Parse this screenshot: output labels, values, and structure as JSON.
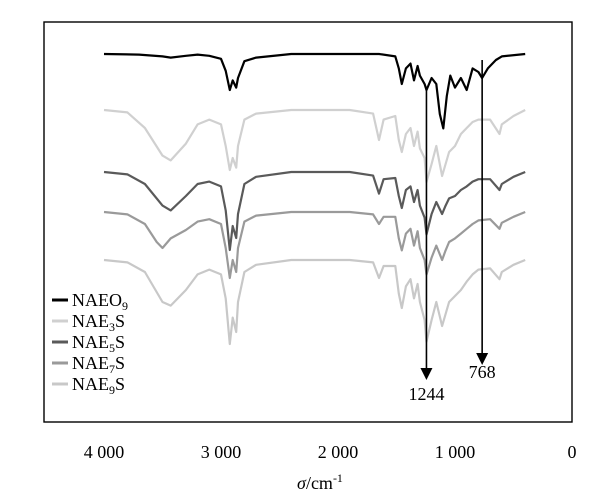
{
  "chart_data": {
    "type": "line",
    "title": "",
    "xlabel": {
      "symbol": "σ",
      "unit": "/cm",
      "exponent": "-1"
    },
    "ylabel": "",
    "xlim": [
      4000,
      0
    ],
    "x_ticks": [
      {
        "value": 4000,
        "label": "4 000"
      },
      {
        "value": 3000,
        "label": "3 000"
      },
      {
        "value": 2000,
        "label": "2 000"
      },
      {
        "value": 1000,
        "label": "1 000"
      },
      {
        "value": 0,
        "label": "0"
      }
    ],
    "legend": [
      {
        "prefix": "NAEO",
        "sub": "9",
        "suffix": "",
        "color": "#000000"
      },
      {
        "prefix": "NAE",
        "sub": "3",
        "suffix": "S",
        "color": "#d0d0d0"
      },
      {
        "prefix": "NAE",
        "sub": "5",
        "suffix": "S",
        "color": "#5a5a5a"
      },
      {
        "prefix": "NAE",
        "sub": "7",
        "suffix": "S",
        "color": "#9a9a9a"
      },
      {
        "prefix": "NAE",
        "sub": "9",
        "suffix": "S",
        "color": "#c8c8c8"
      }
    ],
    "legend_position": "bottom-left",
    "annotations": [
      {
        "label": "1244",
        "x": 1244
      },
      {
        "label": "768",
        "x": 768
      }
    ],
    "series": [
      {
        "color": "#000000",
        "baseline": 0,
        "points": [
          [
            4000,
            0
          ],
          [
            3700,
            0.5
          ],
          [
            3500,
            2
          ],
          [
            3430,
            3
          ],
          [
            3300,
            1.5
          ],
          [
            3200,
            0.5
          ],
          [
            3100,
            1.5
          ],
          [
            3000,
            4
          ],
          [
            2960,
            14
          ],
          [
            2925,
            30
          ],
          [
            2900,
            22
          ],
          [
            2870,
            28
          ],
          [
            2855,
            20
          ],
          [
            2800,
            6
          ],
          [
            2700,
            3
          ],
          [
            2400,
            0
          ],
          [
            1900,
            0
          ],
          [
            1650,
            0
          ],
          [
            1510,
            2
          ],
          [
            1480,
            12
          ],
          [
            1455,
            25
          ],
          [
            1420,
            12
          ],
          [
            1380,
            8
          ],
          [
            1350,
            22
          ],
          [
            1320,
            10
          ],
          [
            1300,
            18
          ],
          [
            1260,
            25
          ],
          [
            1244,
            30
          ],
          [
            1200,
            20
          ],
          [
            1160,
            25
          ],
          [
            1130,
            50
          ],
          [
            1100,
            62
          ],
          [
            1070,
            35
          ],
          [
            1040,
            18
          ],
          [
            1000,
            28
          ],
          [
            950,
            20
          ],
          [
            900,
            30
          ],
          [
            850,
            12
          ],
          [
            800,
            15
          ],
          [
            768,
            20
          ],
          [
            720,
            12
          ],
          [
            650,
            5
          ],
          [
            600,
            2
          ],
          [
            400,
            0
          ]
        ]
      },
      {
        "color": "#d0d0d0",
        "baseline": 0,
        "points": [
          [
            4000,
            0
          ],
          [
            3800,
            2
          ],
          [
            3650,
            15
          ],
          [
            3500,
            38
          ],
          [
            3430,
            42
          ],
          [
            3300,
            28
          ],
          [
            3200,
            12
          ],
          [
            3100,
            8
          ],
          [
            3000,
            12
          ],
          [
            2960,
            30
          ],
          [
            2925,
            50
          ],
          [
            2900,
            40
          ],
          [
            2870,
            48
          ],
          [
            2855,
            30
          ],
          [
            2800,
            8
          ],
          [
            2700,
            3
          ],
          [
            2400,
            0
          ],
          [
            1900,
            0
          ],
          [
            1700,
            3
          ],
          [
            1650,
            25
          ],
          [
            1610,
            8
          ],
          [
            1510,
            5
          ],
          [
            1480,
            25
          ],
          [
            1455,
            35
          ],
          [
            1420,
            20
          ],
          [
            1380,
            15
          ],
          [
            1350,
            30
          ],
          [
            1320,
            18
          ],
          [
            1300,
            32
          ],
          [
            1260,
            40
          ],
          [
            1244,
            60
          ],
          [
            1200,
            45
          ],
          [
            1160,
            30
          ],
          [
            1110,
            55
          ],
          [
            1080,
            45
          ],
          [
            1050,
            35
          ],
          [
            1000,
            30
          ],
          [
            950,
            20
          ],
          [
            900,
            15
          ],
          [
            850,
            10
          ],
          [
            800,
            8
          ],
          [
            700,
            8
          ],
          [
            620,
            20
          ],
          [
            600,
            12
          ],
          [
            500,
            5
          ],
          [
            400,
            0
          ]
        ]
      },
      {
        "color": "#5a5a5a",
        "baseline": 0,
        "points": [
          [
            4000,
            0
          ],
          [
            3800,
            2
          ],
          [
            3650,
            10
          ],
          [
            3500,
            28
          ],
          [
            3430,
            32
          ],
          [
            3300,
            20
          ],
          [
            3200,
            10
          ],
          [
            3100,
            8
          ],
          [
            3000,
            12
          ],
          [
            2960,
            32
          ],
          [
            2925,
            65
          ],
          [
            2900,
            45
          ],
          [
            2870,
            55
          ],
          [
            2855,
            35
          ],
          [
            2800,
            10
          ],
          [
            2700,
            4
          ],
          [
            2400,
            0
          ],
          [
            1900,
            0
          ],
          [
            1700,
            3
          ],
          [
            1650,
            18
          ],
          [
            1610,
            6
          ],
          [
            1510,
            5
          ],
          [
            1480,
            20
          ],
          [
            1455,
            30
          ],
          [
            1420,
            15
          ],
          [
            1380,
            12
          ],
          [
            1350,
            25
          ],
          [
            1320,
            15
          ],
          [
            1300,
            28
          ],
          [
            1260,
            38
          ],
          [
            1244,
            52
          ],
          [
            1200,
            35
          ],
          [
            1160,
            25
          ],
          [
            1110,
            35
          ],
          [
            1080,
            28
          ],
          [
            1050,
            22
          ],
          [
            1000,
            20
          ],
          [
            950,
            15
          ],
          [
            900,
            12
          ],
          [
            850,
            8
          ],
          [
            800,
            6
          ],
          [
            700,
            6
          ],
          [
            620,
            15
          ],
          [
            600,
            10
          ],
          [
            500,
            4
          ],
          [
            400,
            0
          ]
        ]
      },
      {
        "color": "#9a9a9a",
        "baseline": 0,
        "points": [
          [
            4000,
            0
          ],
          [
            3800,
            2
          ],
          [
            3650,
            10
          ],
          [
            3550,
            25
          ],
          [
            3500,
            30
          ],
          [
            3430,
            22
          ],
          [
            3300,
            15
          ],
          [
            3200,
            8
          ],
          [
            3100,
            6
          ],
          [
            3000,
            10
          ],
          [
            2960,
            30
          ],
          [
            2925,
            55
          ],
          [
            2900,
            40
          ],
          [
            2870,
            50
          ],
          [
            2855,
            30
          ],
          [
            2800,
            8
          ],
          [
            2700,
            3
          ],
          [
            2400,
            0
          ],
          [
            1900,
            0
          ],
          [
            1700,
            2
          ],
          [
            1650,
            10
          ],
          [
            1610,
            4
          ],
          [
            1510,
            4
          ],
          [
            1480,
            22
          ],
          [
            1455,
            32
          ],
          [
            1420,
            18
          ],
          [
            1380,
            14
          ],
          [
            1350,
            28
          ],
          [
            1320,
            16
          ],
          [
            1300,
            30
          ],
          [
            1260,
            40
          ],
          [
            1244,
            52
          ],
          [
            1200,
            38
          ],
          [
            1160,
            28
          ],
          [
            1110,
            40
          ],
          [
            1080,
            32
          ],
          [
            1050,
            25
          ],
          [
            1000,
            22
          ],
          [
            950,
            18
          ],
          [
            900,
            14
          ],
          [
            850,
            10
          ],
          [
            800,
            7
          ],
          [
            700,
            6
          ],
          [
            620,
            14
          ],
          [
            600,
            9
          ],
          [
            500,
            4
          ],
          [
            400,
            0
          ]
        ]
      },
      {
        "color": "#c8c8c8",
        "baseline": 0,
        "points": [
          [
            4000,
            0
          ],
          [
            3800,
            2
          ],
          [
            3650,
            10
          ],
          [
            3500,
            35
          ],
          [
            3430,
            38
          ],
          [
            3300,
            25
          ],
          [
            3200,
            12
          ],
          [
            3100,
            8
          ],
          [
            3000,
            12
          ],
          [
            2960,
            32
          ],
          [
            2925,
            70
          ],
          [
            2900,
            48
          ],
          [
            2870,
            60
          ],
          [
            2855,
            35
          ],
          [
            2800,
            10
          ],
          [
            2700,
            4
          ],
          [
            2400,
            0
          ],
          [
            1900,
            0
          ],
          [
            1700,
            2
          ],
          [
            1650,
            15
          ],
          [
            1610,
            5
          ],
          [
            1510,
            5
          ],
          [
            1480,
            28
          ],
          [
            1455,
            40
          ],
          [
            1420,
            22
          ],
          [
            1380,
            16
          ],
          [
            1350,
            32
          ],
          [
            1320,
            20
          ],
          [
            1300,
            35
          ],
          [
            1260,
            50
          ],
          [
            1244,
            68
          ],
          [
            1200,
            50
          ],
          [
            1160,
            35
          ],
          [
            1110,
            55
          ],
          [
            1080,
            45
          ],
          [
            1050,
            35
          ],
          [
            1000,
            30
          ],
          [
            950,
            25
          ],
          [
            900,
            18
          ],
          [
            850,
            12
          ],
          [
            800,
            8
          ],
          [
            700,
            7
          ],
          [
            620,
            16
          ],
          [
            600,
            10
          ],
          [
            500,
            4
          ],
          [
            400,
            0
          ]
        ]
      }
    ]
  }
}
